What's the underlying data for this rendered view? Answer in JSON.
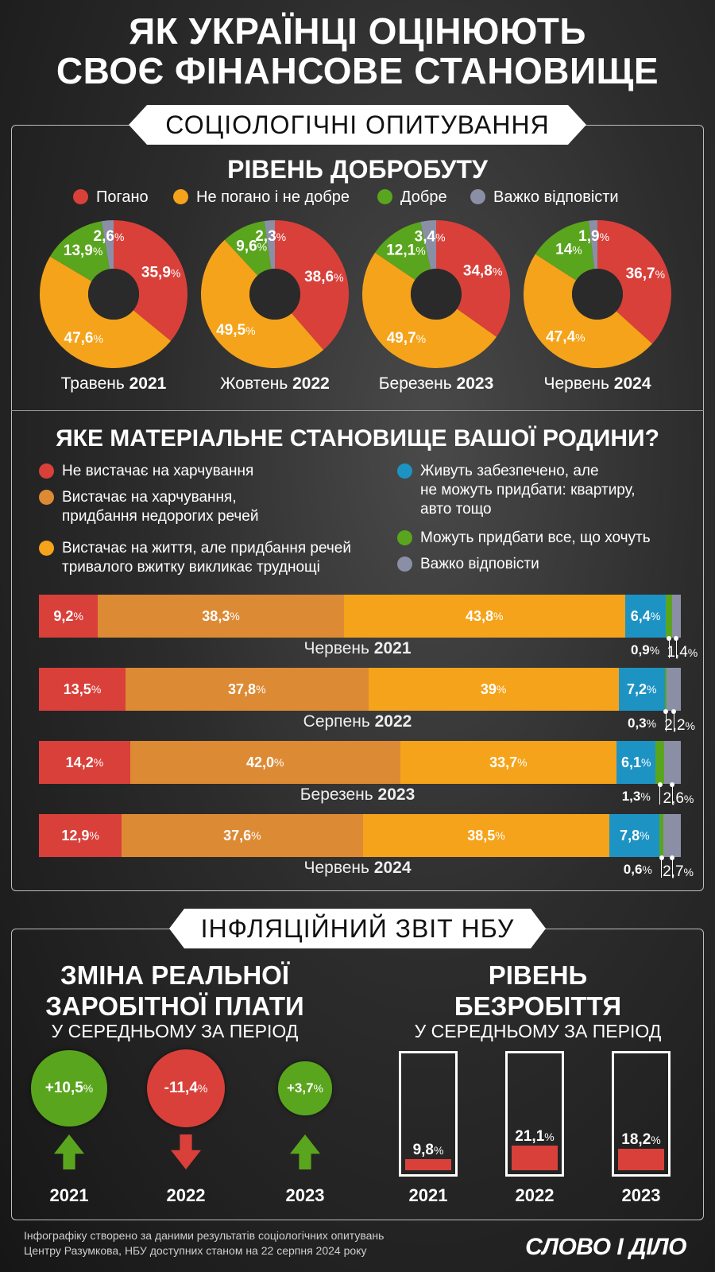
{
  "title_line1": "ЯК УКРАЇНЦІ ОЦІНЮЮТЬ",
  "title_line2": "СВОЄ ФІНАНСОВЕ СТАНОВИЩЕ",
  "banner_survey": "СОЦІОЛОГІЧНІ ОПИТУВАННЯ",
  "banner_nbu": "ІНФЛЯЦІЙНИЙ ЗВІТ НБУ",
  "colors": {
    "bad": "#d9403a",
    "neutral": "#f5a31a",
    "good": "#5aa51e",
    "unsure": "#8b8fa6",
    "orange": "#dd8a34",
    "yellow": "#f5a31a",
    "blue": "#1d93c4"
  },
  "chart_data": [
    {
      "type": "pie",
      "title": "РІВЕНЬ ДОБРОБУТУ",
      "legend": [
        "Погано",
        "Не погано і не добре",
        "Добре",
        "Важко відповісти"
      ],
      "series": [
        {
          "period": "Травень",
          "year": "2021",
          "values": [
            35.9,
            47.6,
            13.9,
            2.6
          ],
          "labels": [
            "35,9",
            "47,6",
            "13,9",
            "2,6"
          ]
        },
        {
          "period": "Жовтень",
          "year": "2022",
          "values": [
            38.6,
            49.5,
            9.6,
            2.3
          ],
          "labels": [
            "38,6",
            "49,5",
            "9,6",
            "2,3"
          ]
        },
        {
          "period": "Березень",
          "year": "2023",
          "values": [
            34.8,
            49.7,
            12.1,
            3.4
          ],
          "labels": [
            "34,8",
            "49,7",
            "12,1",
            "3,4"
          ]
        },
        {
          "period": "Червень",
          "year": "2024",
          "values": [
            36.7,
            47.4,
            14,
            1.9
          ],
          "labels": [
            "36,7",
            "47,4",
            "14",
            "1,9"
          ]
        }
      ]
    },
    {
      "type": "bar",
      "title": "ЯКЕ МАТЕРІАЛЬНЕ СТАНОВИЩЕ ВАШОЇ РОДИНИ?",
      "legend": [
        "Не вистачає на харчування",
        "Вистачає на харчування, придбання недорогих речей",
        "Вистачає на життя, але придбання речей тривалого вжитку викликає труднощі",
        "Живуть забезпечено, але не можуть придбати: квартиру, авто тощо",
        "Можуть придбати все, що хочуть",
        "Важко відповісти"
      ],
      "series": [
        {
          "period": "Червень",
          "year": "2021",
          "values": [
            9.2,
            38.3,
            43.8,
            6.4,
            0.9,
            1.4
          ],
          "labels": [
            "9,2",
            "38,3",
            "43,8",
            "6,4",
            "0,9",
            "1,4"
          ]
        },
        {
          "period": "Серпень",
          "year": "2022",
          "values": [
            13.5,
            37.8,
            39,
            7.2,
            0.3,
            2.2
          ],
          "labels": [
            "13,5",
            "37,8",
            "39",
            "7,2",
            "0,3",
            "2,2"
          ]
        },
        {
          "period": "Березень",
          "year": "2023",
          "values": [
            14.2,
            42.0,
            33.7,
            6.1,
            1.3,
            2.6
          ],
          "labels": [
            "14,2",
            "42,0",
            "33,7",
            "6,1",
            "1,3",
            "2,6"
          ]
        },
        {
          "period": "Червень",
          "year": "2024",
          "values": [
            12.9,
            37.6,
            38.5,
            7.8,
            0.6,
            2.7
          ],
          "labels": [
            "12,9",
            "37,6",
            "38,5",
            "7,8",
            "0,6",
            "2,7"
          ]
        }
      ]
    },
    {
      "type": "bar",
      "title": "ЗМІНА РЕАЛЬНОЇ ЗАРОБІТНОЇ ПЛАТИ",
      "subtitle": "У СЕРЕДНЬОМУ ЗА ПЕРІОД",
      "categories": [
        "2021",
        "2022",
        "2023"
      ],
      "values": [
        10.5,
        -11.4,
        3.7
      ],
      "labels": [
        "+10,5",
        "-11,4",
        "+3,7"
      ]
    },
    {
      "type": "bar",
      "title": "РІВЕНЬ БЕЗРОБІТТЯ",
      "subtitle": "У СЕРЕДНЬОМУ ЗА ПЕРІОД",
      "categories": [
        "2021",
        "2022",
        "2023"
      ],
      "values": [
        9.8,
        21.1,
        18.2
      ],
      "labels": [
        "9,8",
        "21,1",
        "18,2"
      ]
    }
  ],
  "wages_title_l1": "ЗМІНА РЕАЛЬНОЇ",
  "wages_title_l2": "ЗАРОБІТНОЇ ПЛАТИ",
  "unemp_title_l1": "РІВЕНЬ",
  "unemp_title_l2": "БЕЗРОБІТТЯ",
  "subtitle": "У СЕРЕДНЬОМУ ЗА ПЕРІОД",
  "percent_sign": "%",
  "footer_l1": "Інфографіку створено за даними результатів соціологічних опитувань",
  "footer_l2": "Центру Разумкова, НБУ доступних станом на 22 серпня 2024 року",
  "logo": "СЛОВО І ДІЛО"
}
